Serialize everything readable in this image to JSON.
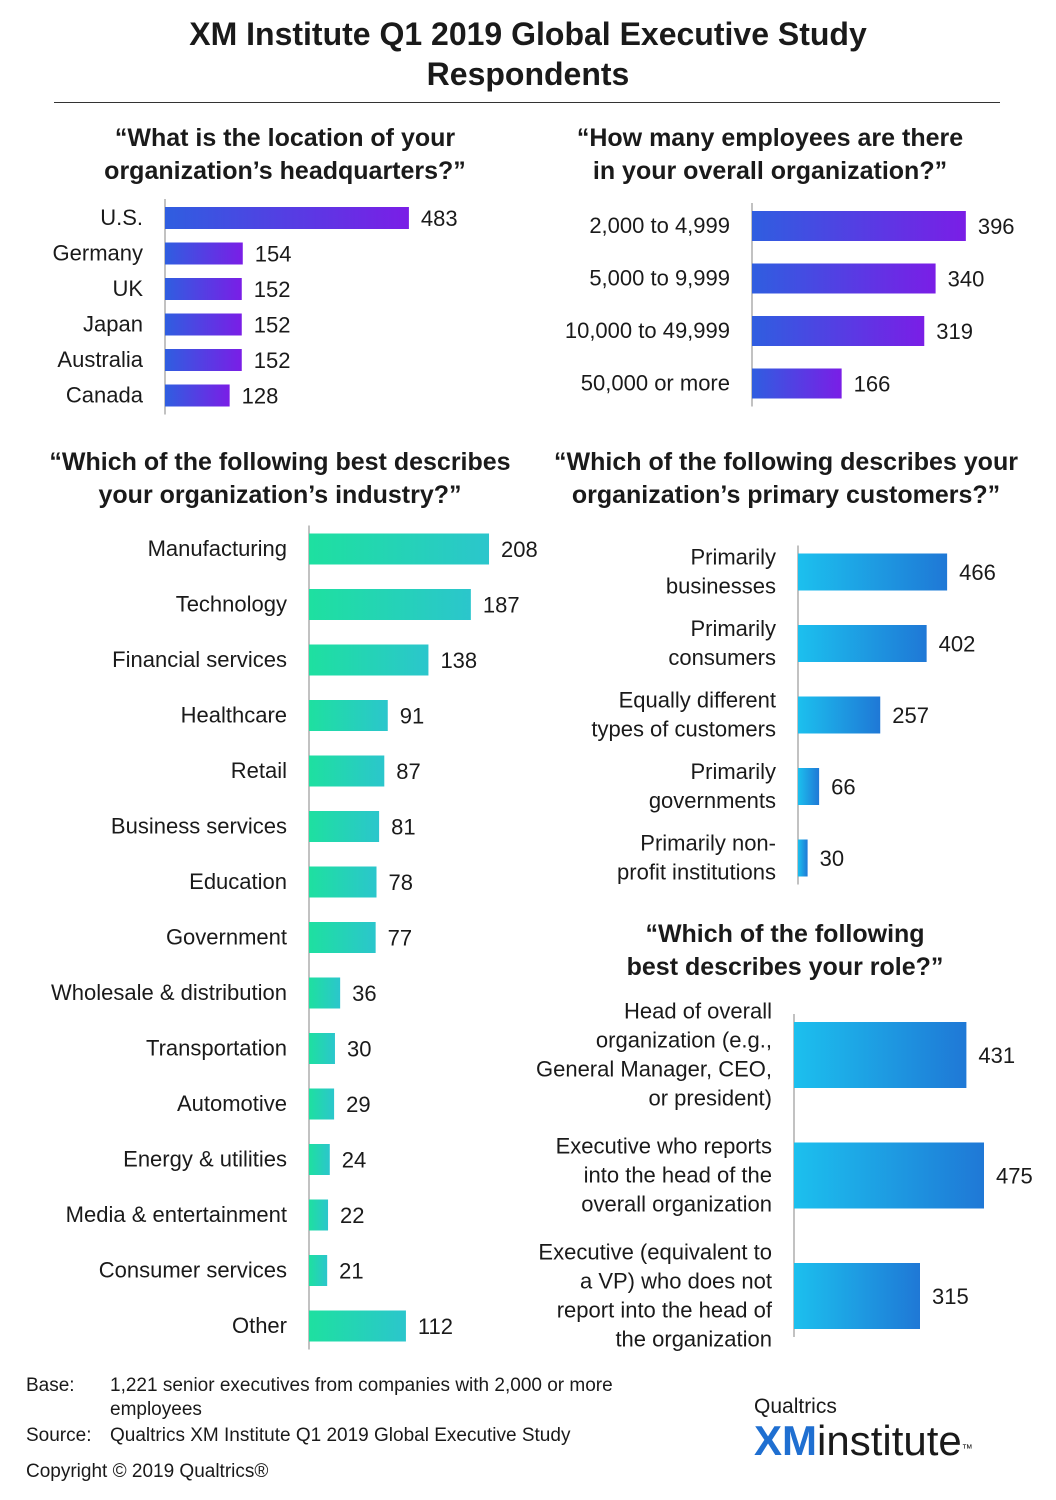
{
  "title": {
    "line1": "XM Institute Q1 2019 Global Executive Study",
    "line2": "Respondents"
  },
  "chart_data": [
    {
      "type": "bar",
      "orientation": "horizontal",
      "title_lines": [
        "“What is the location of your",
        "organization’s headquarters?”"
      ],
      "categories": [
        [
          "U.S."
        ],
        [
          "Germany"
        ],
        [
          "UK"
        ],
        [
          "Japan"
        ],
        [
          "Australia"
        ],
        [
          "Canada"
        ]
      ],
      "values": [
        483,
        154,
        152,
        152,
        152,
        128
      ],
      "colors": [
        "#2f5ee0",
        "#7a1ee6"
      ]
    },
    {
      "type": "bar",
      "orientation": "horizontal",
      "title_lines": [
        "“How many employees are there",
        "in your overall organization?”"
      ],
      "categories": [
        [
          "2,000 to 4,999"
        ],
        [
          "5,000 to 9,999"
        ],
        [
          "10,000 to 49,999"
        ],
        [
          "50,000 or more"
        ]
      ],
      "values": [
        396,
        340,
        319,
        166
      ],
      "colors": [
        "#2f5ee0",
        "#7a1ee6"
      ]
    },
    {
      "type": "bar",
      "orientation": "horizontal",
      "title_lines": [
        "“Which of the following best describes",
        "your organization’s industry?”"
      ],
      "categories": [
        [
          "Manufacturing"
        ],
        [
          "Technology"
        ],
        [
          "Financial services"
        ],
        [
          "Healthcare"
        ],
        [
          "Retail"
        ],
        [
          "Business services"
        ],
        [
          "Education"
        ],
        [
          "Government"
        ],
        [
          "Wholesale & distribution"
        ],
        [
          "Transportation"
        ],
        [
          "Automotive"
        ],
        [
          "Energy & utilities"
        ],
        [
          "Media & entertainment"
        ],
        [
          "Consumer services"
        ],
        [
          "Other"
        ]
      ],
      "values": [
        208,
        187,
        138,
        91,
        87,
        81,
        78,
        77,
        36,
        30,
        29,
        24,
        22,
        21,
        112
      ],
      "colors": [
        "#1ee0a0",
        "#2bc6cc"
      ]
    },
    {
      "type": "bar",
      "orientation": "horizontal",
      "title_lines": [
        "“Which of the following describes your",
        "organization’s primary customers?”"
      ],
      "categories": [
        [
          "Primarily",
          "businesses"
        ],
        [
          "Primarily",
          "consumers"
        ],
        [
          "Equally different",
          "types of customers"
        ],
        [
          "Primarily",
          "governments"
        ],
        [
          "Primarily non-",
          "profit institutions"
        ]
      ],
      "values": [
        466,
        402,
        257,
        66,
        30
      ],
      "colors": [
        "#1cc0ee",
        "#1f78d6"
      ]
    },
    {
      "type": "bar",
      "orientation": "horizontal",
      "title_lines": [
        "“Which of the following",
        "best describes your role?”"
      ],
      "categories": [
        [
          "Head of overall",
          "organization (e.g.,",
          "General Manager, CEO,",
          "or president)"
        ],
        [
          "Executive who reports",
          "into the head of the",
          "overall organization"
        ],
        [
          "Executive (equivalent to",
          "a VP) who does not",
          "report into the head of",
          "the organization"
        ]
      ],
      "values": [
        431,
        475,
        315
      ],
      "colors": [
        "#1cc0ee",
        "#1f78d6"
      ]
    }
  ],
  "footer": {
    "base_label": "Base:",
    "base_text_1": "1,221 senior executives from companies with 2,000 or more",
    "base_text_2": "employees",
    "source_label": "Source:",
    "source_text": "Qualtrics XM Institute Q1 2019 Global Executive Study",
    "copyright": "Copyright © 2019 Qualtrics®"
  },
  "logo": {
    "top": "Qualtrics",
    "xm": "XM",
    "institute": "institute",
    "tm": "™"
  }
}
